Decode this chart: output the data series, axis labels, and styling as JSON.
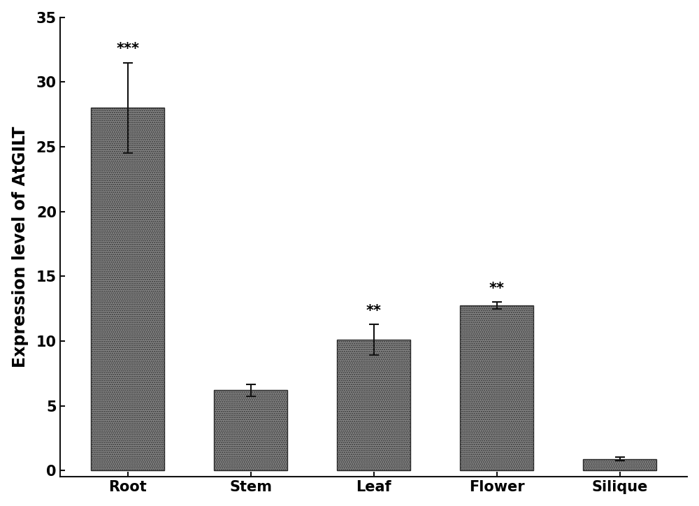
{
  "categories": [
    "Root",
    "Stem",
    "Leaf",
    "Flower",
    "Silique"
  ],
  "values": [
    28.0,
    6.2,
    10.1,
    12.75,
    0.9
  ],
  "errors_upper": [
    3.5,
    0.45,
    1.2,
    0.28,
    0.12
  ],
  "errors_lower": [
    3.5,
    0.45,
    1.2,
    0.28,
    0.12
  ],
  "significance": [
    "***",
    "",
    "**",
    "**",
    ""
  ],
  "bar_color": "#8c8c8c",
  "bar_edgecolor": "#2a2a2a",
  "error_color": "#111111",
  "ylabel": "Expression level of AtGILT",
  "ylim": [
    -0.5,
    35
  ],
  "yticks": [
    0,
    5,
    10,
    15,
    20,
    25,
    30,
    35
  ],
  "bar_width": 0.6,
  "fig_width": 10.0,
  "fig_height": 7.24,
  "background_color": "#ffffff",
  "sig_fontsize": 15,
  "ylabel_fontsize": 17,
  "tick_fontsize": 15
}
